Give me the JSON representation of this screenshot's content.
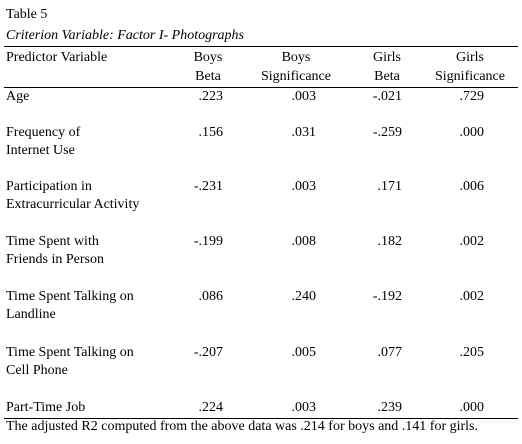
{
  "table": {
    "title": "Table 5",
    "subtitle": "Criterion Variable: Factor I- Photographs",
    "header": {
      "label": "Predictor Variable",
      "columns": [
        [
          "Boys",
          "Beta"
        ],
        [
          "Boys",
          "Significance"
        ],
        [
          "Girls",
          "Beta"
        ],
        [
          "Girls",
          "Significance"
        ]
      ]
    },
    "rows": [
      {
        "label": [
          "Age"
        ],
        "values": [
          ".223",
          ".003",
          "-.021",
          ".729"
        ]
      },
      {
        "label": [
          "Frequency of",
          "Internet Use"
        ],
        "values": [
          ".156",
          ".031",
          "-.259",
          ".000"
        ]
      },
      {
        "label": [
          "Participation in",
          "Extracurricular Activity"
        ],
        "values": [
          "-.231",
          ".003",
          ".171",
          ".006"
        ]
      },
      {
        "label": [
          "Time Spent with",
          "Friends in Person"
        ],
        "values": [
          "-.199",
          ".008",
          ".182",
          ".002"
        ]
      },
      {
        "label": [
          "Time Spent Talking on",
          "Landline"
        ],
        "values": [
          ".086",
          ".240",
          "-.192",
          ".002"
        ]
      },
      {
        "label": [
          "Time Spent Talking on",
          "Cell Phone"
        ],
        "values": [
          "-.207",
          ".005",
          ".077",
          ".205"
        ]
      },
      {
        "label": [
          "Part-Time Job"
        ],
        "values": [
          ".224",
          ".003",
          ".239",
          ".000"
        ]
      }
    ],
    "footnote": "The adjusted R2 computed from the above data was .214 for boys and .141 for girls."
  }
}
